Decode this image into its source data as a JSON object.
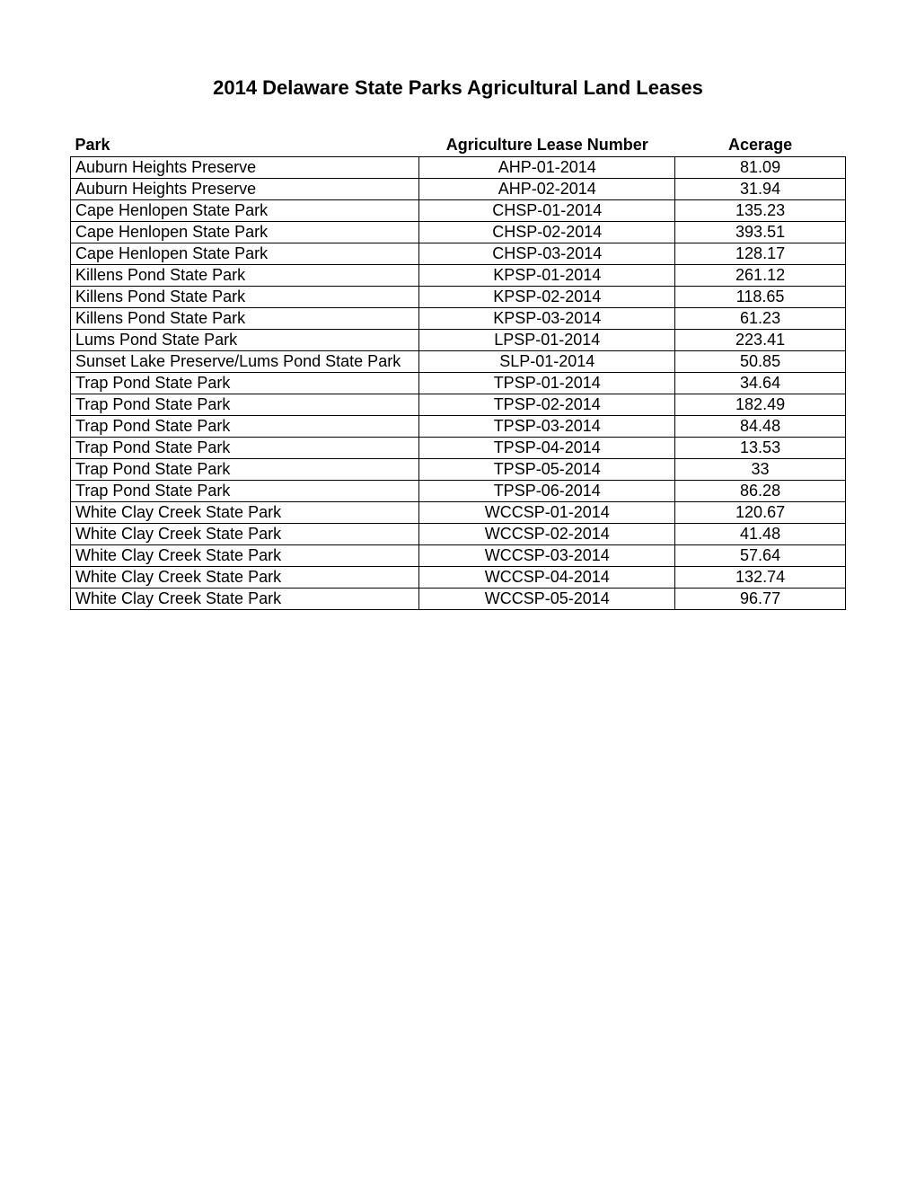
{
  "title": "2014 Delaware State Parks Agricultural Land Leases",
  "table": {
    "columns": [
      "Park",
      "Agriculture Lease Number",
      "Acerage"
    ],
    "column_align": [
      "left",
      "center",
      "center"
    ],
    "column_widths": [
      "45%",
      "33%",
      "22%"
    ],
    "header_align": [
      "left",
      "center",
      "center"
    ],
    "border_color": "#000000",
    "font_size": 18,
    "rows": [
      [
        "Auburn Heights Preserve",
        "AHP-01-2014",
        "81.09"
      ],
      [
        "Auburn Heights Preserve",
        "AHP-02-2014",
        "31.94"
      ],
      [
        "Cape Henlopen State Park",
        "CHSP-01-2014",
        "135.23"
      ],
      [
        "Cape Henlopen State Park",
        "CHSP-02-2014",
        "393.51"
      ],
      [
        "Cape Henlopen State Park",
        "CHSP-03-2014",
        "128.17"
      ],
      [
        "Killens Pond State Park",
        "KPSP-01-2014",
        "261.12"
      ],
      [
        "Killens Pond State Park",
        "KPSP-02-2014",
        "118.65"
      ],
      [
        "Killens Pond State Park",
        "KPSP-03-2014",
        "61.23"
      ],
      [
        "Lums Pond State Park",
        "LPSP-01-2014",
        "223.41"
      ],
      [
        "Sunset Lake Preserve/Lums Pond State Park",
        "SLP-01-2014",
        "50.85"
      ],
      [
        "Trap Pond State Park",
        "TPSP-01-2014",
        "34.64"
      ],
      [
        "Trap Pond State Park",
        "TPSP-02-2014",
        "182.49"
      ],
      [
        "Trap Pond State Park",
        "TPSP-03-2014",
        "84.48"
      ],
      [
        "Trap Pond State Park",
        "TPSP-04-2014",
        "13.53"
      ],
      [
        "Trap Pond State Park",
        "TPSP-05-2014",
        "33"
      ],
      [
        "Trap Pond State Park",
        "TPSP-06-2014",
        "86.28"
      ],
      [
        "White Clay Creek State Park",
        "WCCSP-01-2014",
        "120.67"
      ],
      [
        "White Clay Creek State Park",
        "WCCSP-02-2014",
        "41.48"
      ],
      [
        "White Clay Creek State Park",
        "WCCSP-03-2014",
        "57.64"
      ],
      [
        "White Clay Creek State Park",
        "WCCSP-04-2014",
        "132.74"
      ],
      [
        "White Clay Creek State Park",
        "WCCSP-05-2014",
        "96.77"
      ]
    ]
  },
  "colors": {
    "background": "#ffffff",
    "text": "#000000",
    "border": "#000000"
  },
  "typography": {
    "title_fontsize": 22,
    "title_fontweight": "bold",
    "body_fontsize": 18,
    "font_family": "Arial"
  }
}
